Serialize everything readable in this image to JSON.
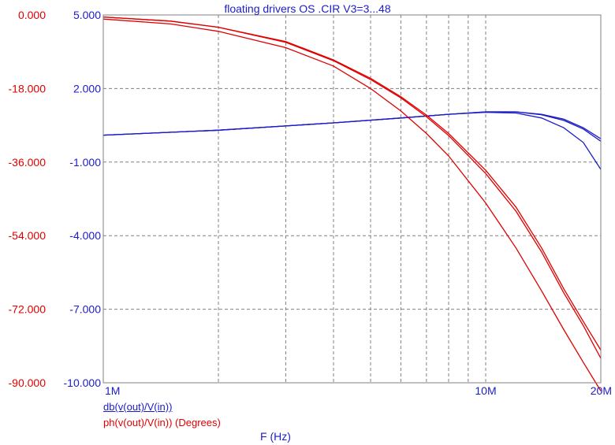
{
  "chart_data": {
    "type": "line",
    "title": "floating drivers OS .CIR V3=3...48",
    "xlabel": "F (Hz)",
    "x_scale": "log",
    "xlim": [
      1000000,
      20000000
    ],
    "x_ticks": [
      {
        "value": 1000000,
        "label": "1M"
      },
      {
        "value": 10000000,
        "label": "10M"
      },
      {
        "value": 20000000,
        "label": "20M"
      }
    ],
    "grid": true,
    "y_left": {
      "label": "ph(v(out)/V(in)) (Degrees)",
      "ylim": [
        -90,
        0
      ],
      "ticks": [
        "0.000",
        "-18.000",
        "-36.000",
        "-54.000",
        "-72.000",
        "-90.000"
      ],
      "color": "#e00000"
    },
    "y_right": {
      "label": "db(v(out)/V(in))",
      "ylim": [
        -10,
        5
      ],
      "ticks": [
        "5.000",
        "2.000",
        "-1.000",
        "-4.000",
        "-7.000",
        "-10.000"
      ],
      "color": "#1c1cc8"
    },
    "legend": [
      {
        "text": "db(v(out)/V(in))",
        "color": "#1c1cc8"
      },
      {
        "text": "ph(v(out)/V(in)) (Degrees)",
        "color": "#e00000"
      }
    ],
    "series": [
      {
        "axis": "db",
        "color": "#1c1cc8",
        "x": [
          1000000,
          2000000,
          4000000,
          6000000,
          8000000,
          10000000,
          12000000,
          14000000,
          16000000,
          18000000,
          20000000
        ],
        "values": [
          0.1,
          0.3,
          0.6,
          0.8,
          0.95,
          1.05,
          1.05,
          0.95,
          0.75,
          0.4,
          -0.05
        ]
      },
      {
        "axis": "db",
        "color": "#1c1cc8",
        "x": [
          1000000,
          2000000,
          4000000,
          6000000,
          8000000,
          10000000,
          12000000,
          14000000,
          16000000,
          18000000,
          20000000
        ],
        "values": [
          0.1,
          0.3,
          0.6,
          0.8,
          0.95,
          1.05,
          1.05,
          0.93,
          0.7,
          0.35,
          -0.15
        ]
      },
      {
        "axis": "db",
        "color": "#1c1cc8",
        "x": [
          1000000,
          2000000,
          4000000,
          6000000,
          8000000,
          10000000,
          12000000,
          14000000,
          16000000,
          18000000,
          20000000
        ],
        "values": [
          0.1,
          0.3,
          0.6,
          0.8,
          0.95,
          1.03,
          1.0,
          0.8,
          0.4,
          -0.2,
          -1.3
        ]
      },
      {
        "axis": "ph",
        "color": "#e00000",
        "x": [
          1000000,
          1500000,
          2000000,
          3000000,
          4000000,
          5000000,
          6000000,
          7000000,
          8000000,
          10000000,
          12000000,
          14000000,
          16000000,
          18000000,
          20000000
        ],
        "values": [
          -0.5,
          -1.5,
          -3,
          -6.5,
          -11,
          -15.5,
          -20,
          -24.5,
          -29,
          -38,
          -47,
          -57,
          -67,
          -75,
          -82
        ]
      },
      {
        "axis": "ph",
        "color": "#e00000",
        "x": [
          1000000,
          1500000,
          2000000,
          3000000,
          4000000,
          5000000,
          6000000,
          7000000,
          8000000,
          10000000,
          12000000,
          14000000,
          16000000,
          18000000,
          20000000
        ],
        "values": [
          -0.5,
          -1.5,
          -3,
          -6.7,
          -11.2,
          -15.8,
          -20.3,
          -24.9,
          -29.5,
          -38.8,
          -48,
          -58,
          -68,
          -76,
          -84
        ]
      },
      {
        "axis": "ph",
        "color": "#e00000",
        "x": [
          1000000,
          1500000,
          2000000,
          3000000,
          4000000,
          5000000,
          6000000,
          7000000,
          8000000,
          10000000,
          12000000,
          14000000,
          16000000,
          18000000,
          20000000
        ],
        "values": [
          -1,
          -2.2,
          -4,
          -8,
          -12.5,
          -18,
          -23.5,
          -29,
          -34.5,
          -46,
          -57,
          -67.5,
          -77,
          -85,
          -92
        ]
      }
    ]
  }
}
